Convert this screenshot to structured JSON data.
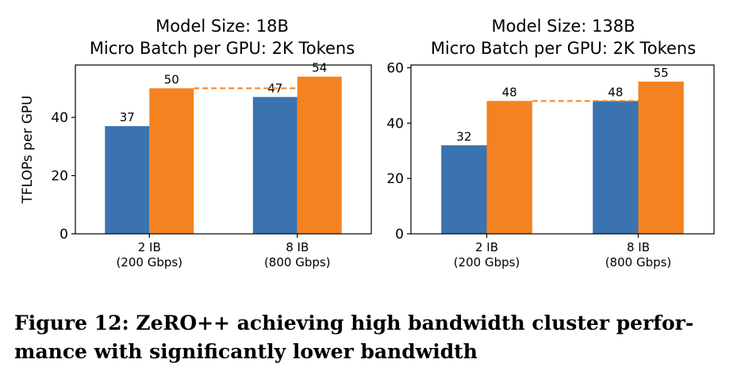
{
  "colors": {
    "blue": "#3a73b0",
    "orange": "#f58220"
  },
  "caption": {
    "line1": "Figure 12: ZeRO++ achieving high bandwidth cluster perfor-",
    "line2": "mance with significantly lower bandwidth"
  },
  "chart_data": [
    {
      "type": "bar",
      "title": [
        "Model Size: 18B",
        "Micro Batch per GPU: 2K Tokens"
      ],
      "ylabel": "TFLOPs per GPU",
      "xlabel": "",
      "ylim": [
        0,
        58
      ],
      "yticks": [
        0,
        20,
        40
      ],
      "categories": [
        [
          "2 IB",
          "(200 Gbps)"
        ],
        [
          "8 IB",
          "(800 Gbps)"
        ]
      ],
      "series": [
        {
          "color": "#3a73b0",
          "values": [
            37,
            47
          ]
        },
        {
          "color": "#f58220",
          "values": [
            50,
            54
          ]
        }
      ],
      "reference_line": {
        "value": 50,
        "style": "dashed",
        "color": "#f58220"
      }
    },
    {
      "type": "bar",
      "title": [
        "Model Size: 138B",
        "Micro Batch per GPU: 2K Tokens"
      ],
      "ylabel": "",
      "xlabel": "",
      "ylim": [
        0,
        61
      ],
      "yticks": [
        0,
        20,
        40,
        60
      ],
      "categories": [
        [
          "2 IB",
          "(200 Gbps)"
        ],
        [
          "8 IB",
          "(800 Gbps)"
        ]
      ],
      "series": [
        {
          "color": "#3a73b0",
          "values": [
            32,
            48
          ]
        },
        {
          "color": "#f58220",
          "values": [
            48,
            55
          ]
        }
      ],
      "reference_line": {
        "value": 48,
        "style": "dashed",
        "color": "#f58220"
      }
    }
  ]
}
